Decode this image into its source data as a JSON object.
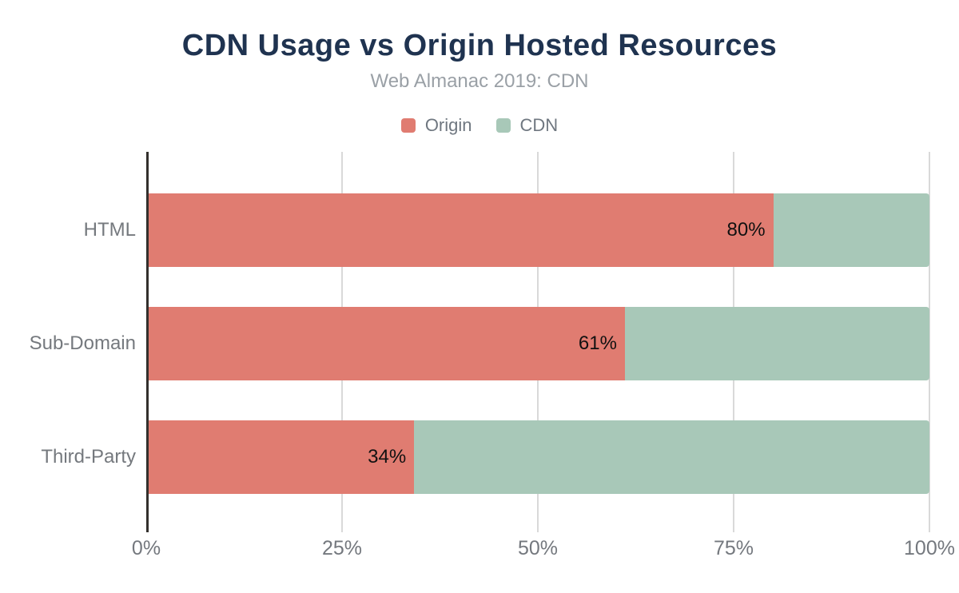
{
  "title": "CDN Usage vs Origin Hosted Resources",
  "subtitle": "Web Almanac 2019: CDN",
  "legend": {
    "items": [
      {
        "label": "Origin",
        "color": "#e07c71"
      },
      {
        "label": "CDN",
        "color": "#a8c8b8"
      }
    ]
  },
  "chart_data": {
    "type": "bar",
    "orientation": "horizontal",
    "stacked": true,
    "title": "CDN Usage vs Origin Hosted Resources",
    "subtitle": "Web Almanac 2019: CDN",
    "categories": [
      "HTML",
      "Sub-Domain",
      "Third-Party"
    ],
    "series": [
      {
        "name": "Origin",
        "color": "#e07c71",
        "values": [
          80,
          61,
          34
        ]
      },
      {
        "name": "CDN",
        "color": "#a8c8b8",
        "values": [
          20,
          39,
          66
        ]
      }
    ],
    "data_labels": [
      "80%",
      "61%",
      "34%"
    ],
    "xlabel": "",
    "ylabel": "",
    "xlim": [
      0,
      100
    ],
    "x_ticks": [
      {
        "label": "0%",
        "value": 0
      },
      {
        "label": "25%",
        "value": 25
      },
      {
        "label": "50%",
        "value": 50
      },
      {
        "label": "75%",
        "value": 75
      },
      {
        "label": "100%",
        "value": 100
      }
    ],
    "grid": true,
    "legend_position": "top"
  },
  "colors": {
    "title": "#1f3350",
    "subtitle": "#9aa0a6",
    "legend_label": "#6f7780",
    "category_label": "#75797e",
    "tick_label": "#74787e",
    "data_label": "#111111",
    "axis_line": "#33302d",
    "gridline": "#d9d9d9",
    "background": "#ffffff"
  }
}
